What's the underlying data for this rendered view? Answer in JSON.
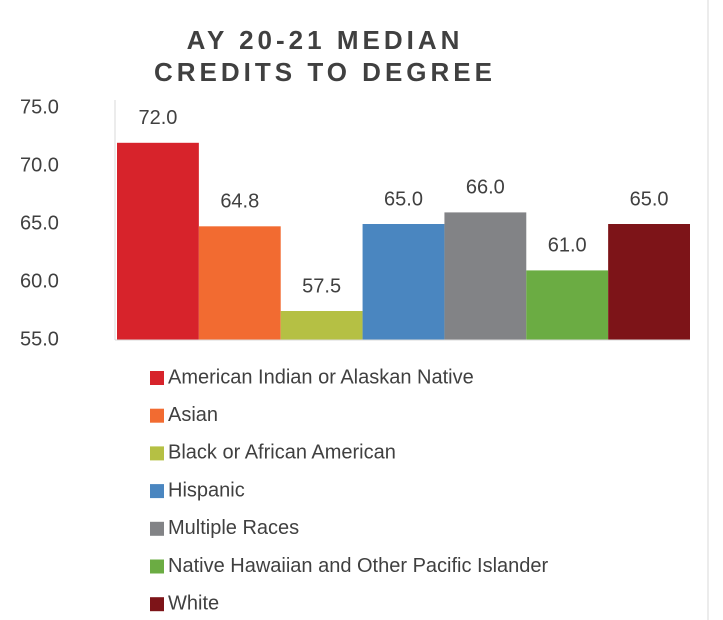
{
  "chart_data": {
    "type": "bar",
    "title": "AY 20-21 MEDIAN CREDITS TO DEGREE",
    "categories": [
      null
    ],
    "series": [
      {
        "name": "American Indian or Alaskan Native",
        "color": "#d7232b",
        "values": [
          72
        ],
        "value_labels": [
          "72.0"
        ]
      },
      {
        "name": "Asian",
        "color": "#f26b31",
        "values": [
          64.8
        ],
        "value_labels": [
          "64.8"
        ]
      },
      {
        "name": "Black or African American",
        "color": "#b5c044",
        "values": [
          57.5
        ],
        "value_labels": [
          "57.5"
        ]
      },
      {
        "name": "Hispanic",
        "color": "#4a86c0",
        "values": [
          65
        ],
        "value_labels": [
          "65.0"
        ]
      },
      {
        "name": "Multiple Races",
        "color": "#828386",
        "values": [
          66
        ],
        "value_labels": [
          "66.0"
        ]
      },
      {
        "name": "Native Hawaiian and Other Pacific Islander",
        "color": "#6bac43",
        "values": [
          61
        ],
        "value_labels": [
          "61.0"
        ]
      },
      {
        "name": "White",
        "color": "#7d1418",
        "values": [
          65
        ],
        "value_labels": [
          "65.0"
        ]
      }
    ],
    "ylim": [
      55,
      75
    ],
    "yticks": [
      {
        "value": 55,
        "label": "55.0"
      },
      {
        "value": 60,
        "label": "60.0"
      },
      {
        "value": 65,
        "label": "65.0"
      },
      {
        "value": 70,
        "label": "70.0"
      },
      {
        "value": 75,
        "label": "75.0"
      }
    ],
    "grid": false,
    "legend": "bottom"
  }
}
